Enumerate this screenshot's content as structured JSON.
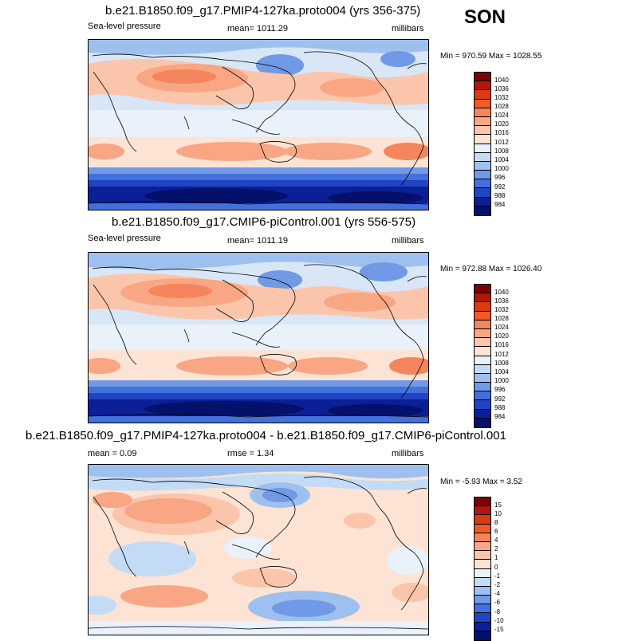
{
  "season": "SON",
  "panels": [
    {
      "title": "b.e21.B1850.f09_g17.PMIP4-127ka.proto004 (yrs 356-375)",
      "left_label": "Sea-level pressure",
      "center_label": "mean= 1011.29",
      "right_label": "millibars",
      "minmax": "Min = 970.59 Max = 1028.55",
      "colorbar": {
        "labels": [
          "1040",
          "1036",
          "1032",
          "1028",
          "1024",
          "1020",
          "1016",
          "1012",
          "1008",
          "1004",
          "1000",
          "996",
          "992",
          "988",
          "984"
        ],
        "colors": [
          "#7a0403",
          "#b0170a",
          "#dc3a10",
          "#ef5a28",
          "#f5855c",
          "#f8a683",
          "#fbc5ac",
          "#fde3d4",
          "#e9f1fb",
          "#c4dbf5",
          "#9ec0ef",
          "#7199e6",
          "#4470dc",
          "#1f44c4",
          "#0b1f96",
          "#04106a"
        ]
      }
    },
    {
      "title": "b.e21.B1850.f09_g17.CMIP6-piControl.001 (yrs 556-575)",
      "left_label": "Sea-level pressure",
      "center_label": "mean= 1011.19",
      "right_label": "millibars",
      "minmax": "Min = 972.88 Max = 1026.40",
      "colorbar": {
        "labels": [
          "1040",
          "1036",
          "1032",
          "1028",
          "1024",
          "1020",
          "1016",
          "1012",
          "1008",
          "1004",
          "1000",
          "996",
          "992",
          "988",
          "984"
        ],
        "colors": [
          "#7a0403",
          "#b0170a",
          "#dc3a10",
          "#ef5a28",
          "#f5855c",
          "#f8a683",
          "#fbc5ac",
          "#fde3d4",
          "#e9f1fb",
          "#c4dbf5",
          "#9ec0ef",
          "#7199e6",
          "#4470dc",
          "#1f44c4",
          "#0b1f96",
          "#04106a"
        ]
      }
    },
    {
      "title": "b.e21.B1850.f09_g17.PMIP4-127ka.proto004 - b.e21.B1850.f09_g17.CMIP6-piControl.001",
      "left_label": "mean =   0.09",
      "center_label": "rmse =   1.34",
      "right_label": "millibars",
      "minmax": "Min =  -5.93 Max =   3.52",
      "colorbar": {
        "labels": [
          "15",
          "10",
          "8",
          "6",
          "4",
          "2",
          "1",
          "0",
          "-1",
          "-2",
          "-4",
          "-6",
          "-8",
          "-10",
          "-15"
        ],
        "colors": [
          "#7a0403",
          "#b0170a",
          "#dc3a10",
          "#ef5a28",
          "#f5855c",
          "#f8a683",
          "#fbc5ac",
          "#fde3d4",
          "#e9f1fb",
          "#c4dbf5",
          "#9ec0ef",
          "#7199e6",
          "#4470dc",
          "#1f44c4",
          "#0b1f96",
          "#04106a"
        ]
      }
    }
  ]
}
